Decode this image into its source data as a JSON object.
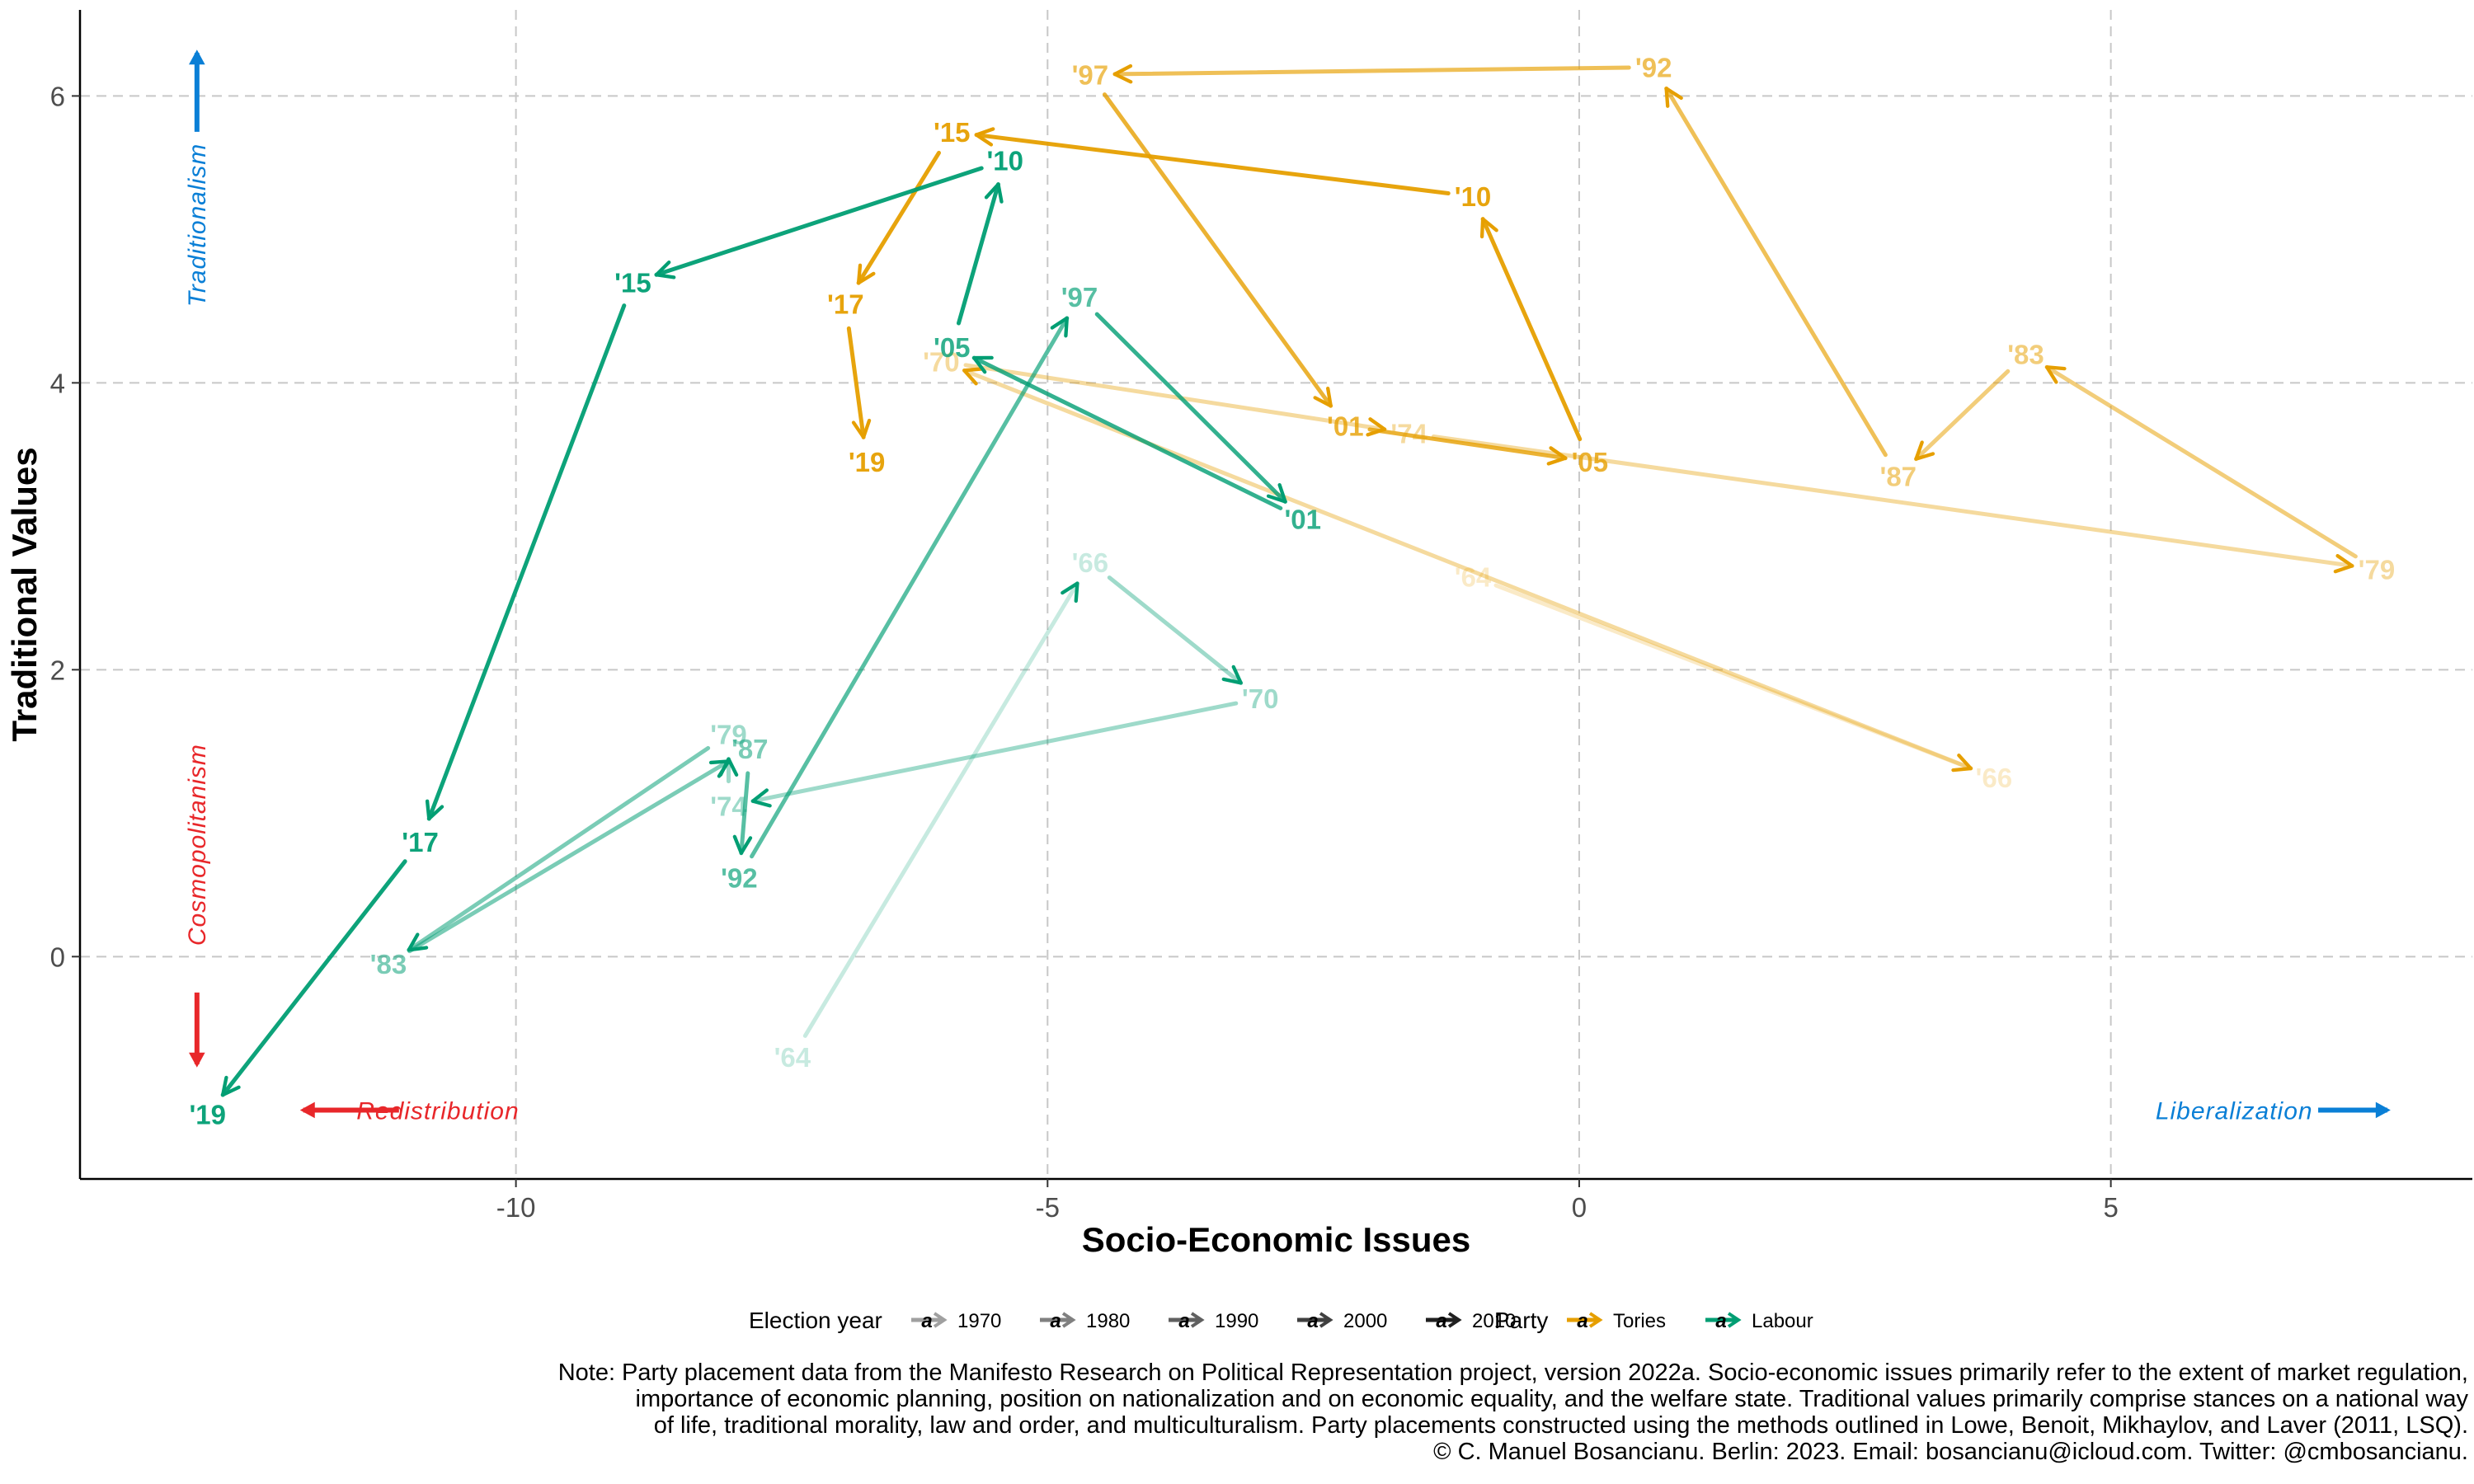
{
  "chart_data": {
    "type": "line",
    "xlabel": "Socio-Economic Issues",
    "ylabel": "Traditional Values",
    "xlim": [
      -14.1,
      8.4
    ],
    "ylim": [
      -1.55,
      6.6
    ],
    "x_ticks": [
      -10,
      -5,
      0,
      5
    ],
    "x_tick_labels": [
      "-10",
      "-5",
      "0",
      "5"
    ],
    "y_ticks": [
      0,
      2,
      4,
      6
    ],
    "y_tick_labels": [
      "0",
      "2",
      "4",
      "6"
    ],
    "grid": "major, dashed",
    "legend_position": "bottom",
    "direction_labels": {
      "traditionalism": "Traditionalism",
      "cosmopolitanism": "Cosmopolitanism",
      "redistribution": "Redistribution",
      "liberalization": "Liberalization"
    },
    "colors": {
      "Tories": "#E69F00",
      "Labour": "#009E73",
      "traditionalism": "#0A7FD6",
      "cosmopolitanism": "#E8272A",
      "grid": "#c8c8c8"
    },
    "legend": {
      "year_title": "Election year",
      "years": [
        "1970",
        "1980",
        "1990",
        "2000",
        "2010"
      ],
      "party_title": "Party",
      "parties": [
        "Tories",
        "Labour"
      ],
      "key_glyph": "a"
    },
    "series": [
      {
        "name": "Tories",
        "points": [
          {
            "label": "'64",
            "x": -1.0,
            "y": 2.65,
            "decade": 1960
          },
          {
            "label": "'66",
            "x": 3.9,
            "y": 1.25,
            "decade": 1960
          },
          {
            "label": "'70",
            "x": -6.0,
            "y": 4.15,
            "decade": 1970
          },
          {
            "label": "'74",
            "x": -1.6,
            "y": 3.65,
            "decade": 1970
          },
          {
            "label": "'79",
            "x": 7.5,
            "y": 2.7,
            "decade": 1970
          },
          {
            "label": "'83",
            "x": 4.2,
            "y": 4.2,
            "decade": 1980
          },
          {
            "label": "'87",
            "x": 3.0,
            "y": 3.35,
            "decade": 1980
          },
          {
            "label": "'92",
            "x": 0.7,
            "y": 6.2,
            "decade": 1990
          },
          {
            "label": "'97",
            "x": -4.6,
            "y": 6.15,
            "decade": 1990
          },
          {
            "label": "'01",
            "x": -2.2,
            "y": 3.7,
            "decade": 2000
          },
          {
            "label": "'05",
            "x": 0.1,
            "y": 3.45,
            "decade": 2000
          },
          {
            "label": "'10",
            "x": -1.0,
            "y": 5.3,
            "decade": 2010
          },
          {
            "label": "'15",
            "x": -5.9,
            "y": 5.75,
            "decade": 2010
          },
          {
            "label": "'17",
            "x": -6.9,
            "y": 4.55,
            "decade": 2010
          },
          {
            "label": "'19",
            "x": -6.7,
            "y": 3.45,
            "decade": 2010
          }
        ]
      },
      {
        "name": "Labour",
        "points": [
          {
            "label": "'64",
            "x": -7.4,
            "y": -0.7,
            "decade": 1960
          },
          {
            "label": "'66",
            "x": -4.6,
            "y": 2.75,
            "decade": 1960
          },
          {
            "label": "'70",
            "x": -3.0,
            "y": 1.8,
            "decade": 1970
          },
          {
            "label": "'74",
            "x": -8.0,
            "y": 1.05,
            "decade": 1970
          },
          {
            "label": "'79",
            "x": -8.0,
            "y": 1.55,
            "decade": 1970
          },
          {
            "label": "'83",
            "x": -11.2,
            "y": -0.05,
            "decade": 1980
          },
          {
            "label": "'87",
            "x": -7.8,
            "y": 1.45,
            "decade": 1980
          },
          {
            "label": "'92",
            "x": -7.9,
            "y": 0.55,
            "decade": 1990
          },
          {
            "label": "'97",
            "x": -4.7,
            "y": 4.6,
            "decade": 1990
          },
          {
            "label": "'01",
            "x": -2.6,
            "y": 3.05,
            "decade": 2000
          },
          {
            "label": "'05",
            "x": -5.9,
            "y": 4.25,
            "decade": 2000
          },
          {
            "label": "'10",
            "x": -5.4,
            "y": 5.55,
            "decade": 2010
          },
          {
            "label": "'15",
            "x": -8.9,
            "y": 4.7,
            "decade": 2010
          },
          {
            "label": "'17",
            "x": -10.9,
            "y": 0.8,
            "decade": 2010
          },
          {
            "label": "'19",
            "x": -12.9,
            "y": -1.1,
            "decade": 2010
          }
        ]
      }
    ],
    "note_lines": [
      "Note: Party placement data from the Manifesto Research on Political Representation project, version 2022a. Socio-economic issues primarily refer to the extent of market regulation,",
      "importance of economic planning, position on nationalization and on economic equality, and the welfare state. Traditional values primarily comprise stances on a national way",
      "of life, traditional morality, law and order, and multiculturalism. Party placements constructed using the methods outlined in Lowe, Benoit, Mikhaylov, and Laver (2011, LSQ).",
      "© C. Manuel Bosancianu. Berlin: 2023. Email: bosancianu@icloud.com. Twitter: @cmbosancianu."
    ]
  }
}
